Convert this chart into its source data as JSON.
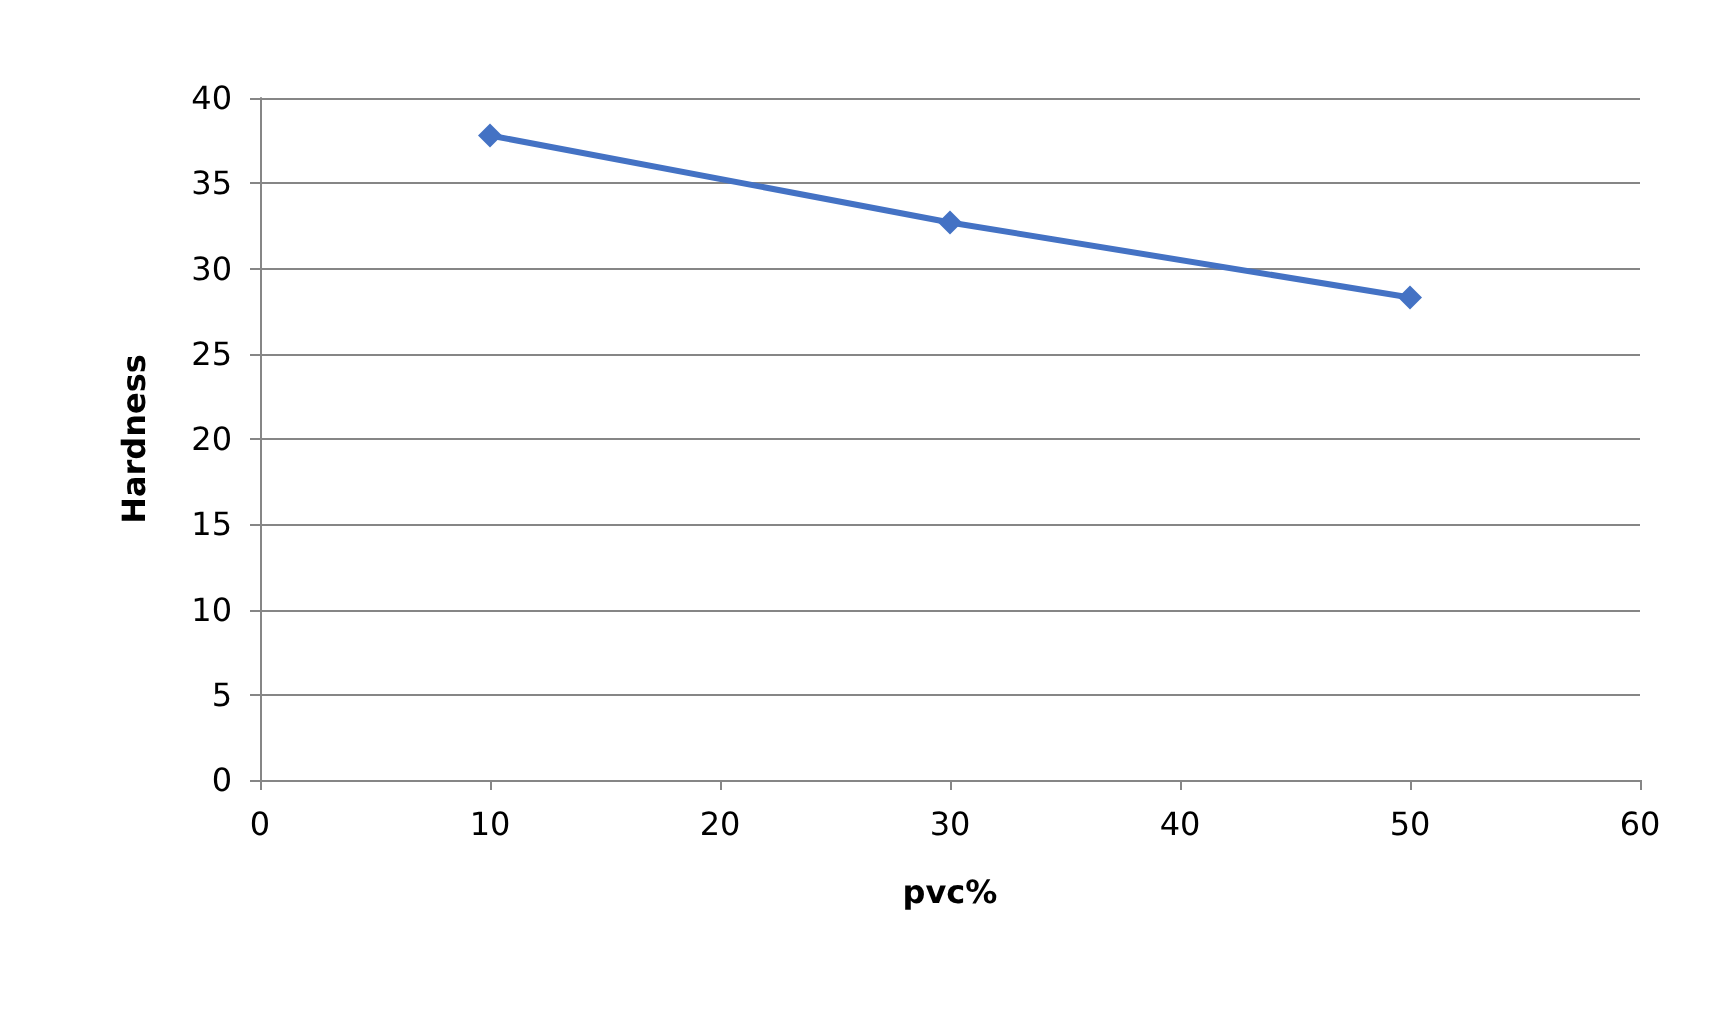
{
  "chart_data": {
    "type": "line",
    "xlabel": "pvc%",
    "ylabel": "Hardness",
    "x": [
      10,
      30,
      50
    ],
    "series": [
      {
        "color": "#4472c4",
        "values": [
          37.8,
          32.7,
          28.3
        ]
      }
    ],
    "xlim": [
      0,
      60
    ],
    "xticks": [
      0,
      10,
      20,
      30,
      40,
      50,
      60
    ],
    "ylim": [
      0,
      40
    ],
    "yticks": [
      0,
      5,
      10,
      15,
      20,
      25,
      30,
      35,
      40
    ],
    "grid": "y",
    "marker": "diamond",
    "line_style": "solid"
  }
}
